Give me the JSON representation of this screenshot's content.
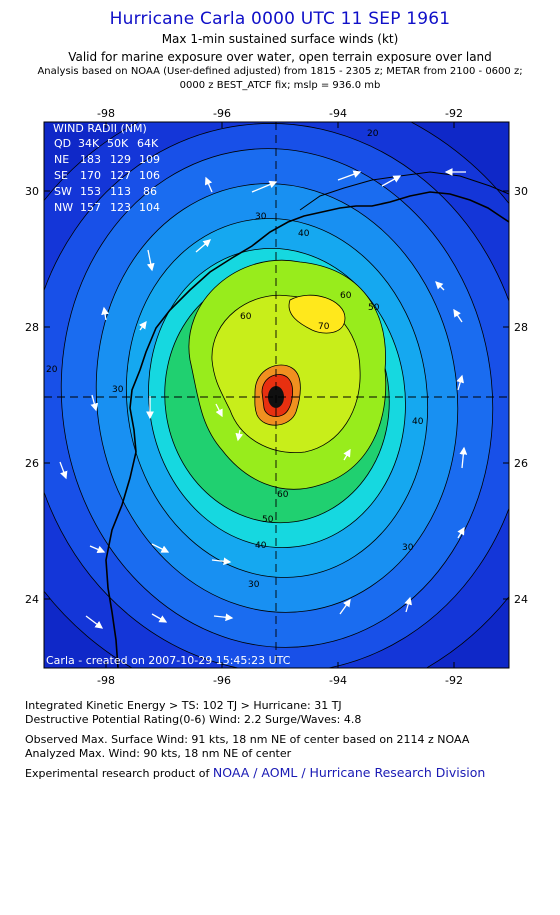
{
  "header": {
    "title": "Hurricane Carla 0000 UTC 11 SEP 1961",
    "line1": "Max 1-min sustained surface winds (kt)",
    "line2": "Valid for marine exposure over water, open terrain exposure over land",
    "line3": "Analysis based on  NOAA (User-defined adjusted) from 1815 - 2305 z;  METAR from 2100 - 0600 z;",
    "line4": "0000 z BEST_ATCF fix; mslp = 936.0 mb"
  },
  "map": {
    "x_ticks": [
      "-98",
      "-96",
      "-94",
      "-92"
    ],
    "y_ticks": [
      "30",
      "28",
      "26",
      "24"
    ],
    "credit": "Carla - created on 2007-10-29 15:45:23 UTC",
    "wind_radii": {
      "title": "WIND RADII (NM)",
      "header": [
        "QD",
        "34K",
        "50K",
        "64K"
      ],
      "rows": [
        [
          "NE",
          "183",
          "129",
          "109"
        ],
        [
          "SE",
          "170",
          "127",
          "106"
        ],
        [
          "SW",
          "153",
          "113",
          "86"
        ],
        [
          "NW",
          "157",
          "123",
          "104"
        ]
      ]
    },
    "contour_labels": [
      "20",
      "30",
      "40",
      "50",
      "60",
      "70"
    ],
    "colors": {
      "water_min": "#0f28c8",
      "ts": "#15a8f0",
      "ts_upper": "#16d8e0",
      "strong": "#20d070",
      "hurricane": "#98ec1c",
      "core": "#ffe81c",
      "max": "#e83010"
    }
  },
  "footer": {
    "ike": "Integrated Kinetic Energy > TS: 102 TJ   > Hurricane: 31 TJ",
    "dpr": "Destructive Potential Rating(0-6)  Wind: 2.2 Surge/Waves: 4.8",
    "observed": "Observed Max. Surface Wind: 91 kts, 18 nm NE of center based on 2114 z NOAA",
    "analyzed": "Analyzed Max. Wind: 90 kts, 18 nm NE of center",
    "product_prefix": "Experimental research product of ",
    "product_link": "NOAA / AOML / Hurricane Research Division"
  }
}
